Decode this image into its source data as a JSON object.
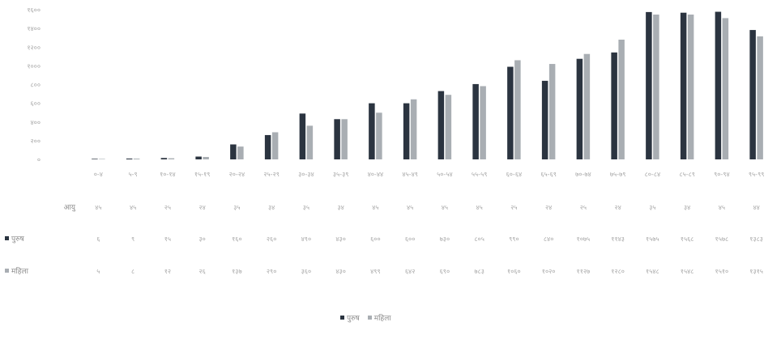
{
  "chart_data": {
    "type": "bar",
    "title": "",
    "xlabel": "",
    "ylabel": "",
    "ylim": [
      0,
      1600
    ],
    "y_ticks": [
      "१६००",
      "१४००",
      "१२००",
      "१०००",
      "८००",
      "६००",
      "४००",
      "२००",
      "०"
    ],
    "categories": [
      "०-४",
      "५-९",
      "१०-१४",
      "१५-१९",
      "२०-२४",
      "२५-२९",
      "३०-३४",
      "३५-३९",
      "४०-४४",
      "४५-४९",
      "५०-५४",
      "५५-५९",
      "६०-६४",
      "६५-६९",
      "७०-७४",
      "७५-७९",
      "८०-८४",
      "८५-८९",
      "९०-९४",
      "९५-९९"
    ],
    "age_row_label": "आयु",
    "age_row": [
      "४५",
      "४५",
      "२५",
      "२४",
      "३५",
      "३४",
      "३५",
      "३४",
      "४५",
      "४५",
      "४५",
      "४५",
      "२५",
      "२४",
      "२५",
      "२४",
      "३५",
      "३४",
      "४५",
      "४४"
    ],
    "series": [
      {
        "name": "पुरुष",
        "color": "#2b3440",
        "values": [
          6,
          9,
          15,
          30,
          160,
          260,
          490,
          430,
          600,
          600,
          730,
          805,
          990,
          840,
          1075,
          1143,
          1575,
          1568,
          1578,
          1383
        ]
      },
      {
        "name": "महिला",
        "color": "#a9aeb3",
        "values": [
          5,
          8,
          12,
          26,
          137,
          290,
          360,
          430,
          499,
          642,
          690,
          783,
          1060,
          1020,
          1127,
          1280,
          1548,
          1548,
          1510,
          1315
        ]
      }
    ],
    "table_rows": [
      {
        "label": "पुरुष",
        "values": [
          "६",
          "९",
          "१५",
          "३०",
          "१६०",
          "२६०",
          "४९०",
          "४३०",
          "६००",
          "६००",
          "७३०",
          "८०५",
          "९९०",
          "८४०",
          "१०७५",
          "११४३",
          "१५७५",
          "१५६८",
          "१५७८",
          "१३८३"
        ]
      },
      {
        "label": "महिला",
        "values": [
          "५",
          "८",
          "१२",
          "२६",
          "१३७",
          "२९०",
          "३६०",
          "४३०",
          "४९९",
          "६४२",
          "६९०",
          "७८३",
          "१०६०",
          "१०२०",
          "११२७",
          "१२८०",
          "१५४८",
          "१५४८",
          "१५१०",
          "१३१५"
        ]
      }
    ],
    "legend": {
      "placement": "bottom",
      "entries": [
        "पुरुष",
        "महिला"
      ]
    },
    "grid": false
  }
}
